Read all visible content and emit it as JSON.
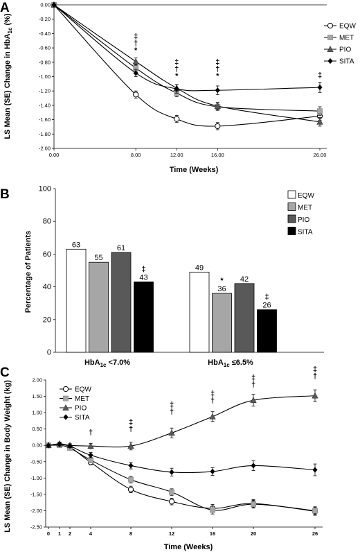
{
  "chart_data": [
    {
      "panel": "A",
      "type": "line",
      "xlabel": "Time (Weeks)",
      "ylabel": [
        "LS  Mean (SE) Change in HbA",
        "1c",
        " (%)"
      ],
      "x_ticks": [
        "0.00",
        "8.00",
        "12.00",
        "16.00",
        "26.00"
      ],
      "y_ticks": [
        "0.00",
        "-0.20",
        "-0.40",
        "-0.60",
        "-0.80",
        "-1.00",
        "-1.20",
        "-1.40",
        "-1.60",
        "-1.80",
        "-2.00"
      ],
      "xlim": [
        0,
        26
      ],
      "ylim": [
        -2.0,
        0.0
      ],
      "x": [
        0,
        8,
        12,
        16,
        26
      ],
      "series": [
        {
          "name": "EQW",
          "color": "#ffffff",
          "line": "#000000",
          "marker": "circle-open",
          "values": [
            0,
            -1.25,
            -1.59,
            -1.69,
            -1.55
          ],
          "se": [
            0,
            0.05,
            0.05,
            0.05,
            0.06
          ]
        },
        {
          "name": "MET",
          "color": "#a6a6a6",
          "line": "#000000",
          "marker": "square",
          "values": [
            0,
            -0.88,
            -1.23,
            -1.42,
            -1.48
          ],
          "se": [
            0,
            0.05,
            0.05,
            0.05,
            0.06
          ]
        },
        {
          "name": "PIO",
          "color": "#595959",
          "line": "#000000",
          "marker": "triangle",
          "values": [
            0,
            -0.79,
            -1.16,
            -1.41,
            -1.63
          ],
          "se": [
            0,
            0.05,
            0.05,
            0.05,
            0.06
          ]
        },
        {
          "name": "SITA",
          "color": "#000000",
          "line": "#000000",
          "marker": "diamond",
          "values": [
            0,
            -0.95,
            -1.17,
            -1.19,
            -1.15
          ],
          "se": [
            0,
            0.05,
            0.06,
            0.06,
            0.07
          ]
        }
      ],
      "annotations": [
        {
          "x": 8,
          "symbols": [
            "‡",
            "†",
            "*"
          ]
        },
        {
          "x": 12,
          "symbols": [
            "‡",
            "†",
            "*"
          ]
        },
        {
          "x": 16,
          "symbols": [
            "‡",
            "†",
            "*"
          ]
        },
        {
          "x": 26,
          "symbols": [
            "‡"
          ]
        }
      ]
    },
    {
      "panel": "B",
      "type": "bar",
      "ylabel": "Percentage of Patients",
      "y_ticks": [
        "0",
        "20",
        "40",
        "60",
        "80",
        "100"
      ],
      "ylim": [
        0,
        100
      ],
      "categories": [
        {
          "main": "HbA",
          "sub": "1c",
          "rest": " <7.0%"
        },
        {
          "main": "HbA",
          "sub": "1c",
          "rest": " ≤6.5%"
        }
      ],
      "series": [
        {
          "name": "EQW",
          "color": "#ffffff",
          "values": [
            63,
            49
          ],
          "labels": [
            "63",
            "49"
          ]
        },
        {
          "name": "MET",
          "color": "#a6a6a6",
          "values": [
            55,
            36
          ],
          "labels": [
            "55",
            "36"
          ]
        },
        {
          "name": "PIO",
          "color": "#595959",
          "values": [
            61,
            42
          ],
          "labels": [
            "61",
            "42"
          ]
        },
        {
          "name": "SITA",
          "color": "#000000",
          "values": [
            43,
            26
          ],
          "labels": [
            "43",
            "26"
          ]
        }
      ],
      "annotations": [
        {
          "category": 0,
          "series": 3,
          "symbol": "‡"
        },
        {
          "category": 1,
          "series": 1,
          "symbol": "*"
        },
        {
          "category": 1,
          "series": 3,
          "symbol": "‡"
        }
      ]
    },
    {
      "panel": "C",
      "type": "line",
      "xlabel": "Time (Weeks)",
      "ylabel": [
        "LS  Mean (SE) Change in Body Weight (kg)"
      ],
      "x_ticks": [
        "0",
        "1",
        "2",
        "4",
        "8",
        "12",
        "16",
        "20",
        "26"
      ],
      "y_ticks": [
        "2.00",
        "1.50",
        "1.00",
        "0.50",
        "0.00",
        "-0.50",
        "-1.00",
        "-1.50",
        "-2.00",
        "-2.50"
      ],
      "xlim": [
        0,
        26
      ],
      "ylim": [
        -2.5,
        2.0
      ],
      "x": [
        0,
        1,
        2,
        4,
        8,
        12,
        16,
        20,
        26
      ],
      "series": [
        {
          "name": "EQW",
          "color": "#ffffff",
          "line": "#000000",
          "marker": "circle-open",
          "values": [
            0,
            0.02,
            -0.05,
            -0.52,
            -1.35,
            -1.72,
            -1.93,
            -1.78,
            -2.02
          ],
          "se": [
            0,
            0.05,
            0.05,
            0.08,
            0.1,
            0.1,
            0.12,
            0.12,
            0.12
          ]
        },
        {
          "name": "MET",
          "color": "#a6a6a6",
          "line": "#000000",
          "marker": "square",
          "values": [
            0,
            0.0,
            -0.08,
            -0.45,
            -1.05,
            -1.43,
            -1.98,
            -1.8,
            -2.0
          ],
          "se": [
            0,
            0.05,
            0.05,
            0.08,
            0.1,
            0.1,
            0.12,
            0.12,
            0.12
          ]
        },
        {
          "name": "PIO",
          "color": "#595959",
          "line": "#000000",
          "marker": "triangle",
          "values": [
            0,
            0.05,
            0.0,
            -0.02,
            -0.02,
            0.38,
            0.88,
            1.38,
            1.52
          ],
          "se": [
            0,
            0.05,
            0.05,
            0.08,
            0.12,
            0.15,
            0.15,
            0.18,
            0.18
          ]
        },
        {
          "name": "SITA",
          "color": "#000000",
          "line": "#000000",
          "marker": "diamond",
          "values": [
            0,
            0.03,
            -0.02,
            -0.3,
            -0.62,
            -0.82,
            -0.8,
            -0.62,
            -0.75
          ],
          "se": [
            0,
            0.05,
            0.05,
            0.08,
            0.1,
            0.12,
            0.12,
            0.15,
            0.18
          ]
        }
      ],
      "annotations": [
        {
          "x": 4,
          "symbols": [
            "†"
          ]
        },
        {
          "x": 8,
          "symbols": [
            "‡",
            "†"
          ]
        },
        {
          "x": 12,
          "symbols": [
            "‡",
            "†"
          ]
        },
        {
          "x": 16,
          "symbols": [
            "‡",
            "†"
          ]
        },
        {
          "x": 20,
          "symbols": [
            "‡",
            "†"
          ]
        },
        {
          "x": 26,
          "symbols": [
            "‡",
            "†"
          ]
        }
      ]
    }
  ]
}
